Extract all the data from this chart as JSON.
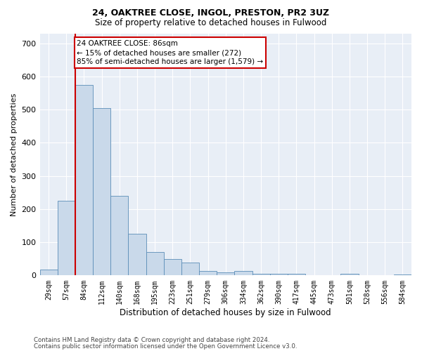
{
  "title1": "24, OAKTREE CLOSE, INGOL, PRESTON, PR2 3UZ",
  "title2": "Size of property relative to detached houses in Fulwood",
  "xlabel": "Distribution of detached houses by size in Fulwood",
  "ylabel": "Number of detached properties",
  "annotation_line1": "24 OAKTREE CLOSE: 86sqm",
  "annotation_line2": "← 15% of detached houses are smaller (272)",
  "annotation_line3": "85% of semi-detached houses are larger (1,579) →",
  "footnote1": "Contains HM Land Registry data © Crown copyright and database right 2024.",
  "footnote2": "Contains public sector information licensed under the Open Government Licence v3.0.",
  "bar_color": "#c9d9ea",
  "bar_edge_color": "#5b8db8",
  "marker_line_color": "#cc0000",
  "annotation_box_edge_color": "#cc0000",
  "background_color": "#e8eef6",
  "grid_color": "#ffffff",
  "categories": [
    "29sqm",
    "57sqm",
    "84sqm",
    "112sqm",
    "140sqm",
    "168sqm",
    "195sqm",
    "223sqm",
    "251sqm",
    "279sqm",
    "306sqm",
    "334sqm",
    "362sqm",
    "390sqm",
    "417sqm",
    "445sqm",
    "473sqm",
    "501sqm",
    "528sqm",
    "556sqm",
    "584sqm"
  ],
  "values": [
    18,
    225,
    575,
    505,
    240,
    125,
    70,
    50,
    40,
    13,
    10,
    14,
    5,
    5,
    5,
    0,
    0,
    5,
    0,
    0,
    3
  ],
  "ylim": [
    0,
    730
  ],
  "yticks": [
    0,
    100,
    200,
    300,
    400,
    500,
    600,
    700
  ],
  "marker_bin_index": 2,
  "title1_fontsize": 9,
  "title2_fontsize": 8.5
}
